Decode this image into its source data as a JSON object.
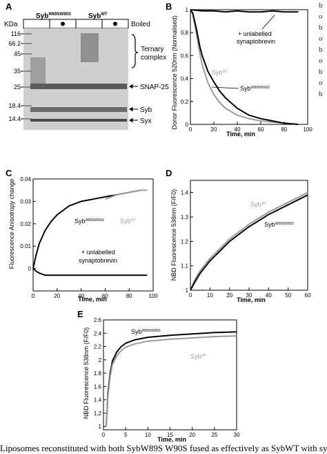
{
  "panels": {
    "a": {
      "letter": "A",
      "kda_label": "KDa",
      "boiled_label": "Boiled",
      "lane_group_mut": "Syb",
      "lane_group_mut_sup": "W89SW90S",
      "lane_group_wt": "Syb",
      "lane_group_wt_sup": "WT",
      "markers": [
        "116",
        "66.2",
        "45",
        "35",
        "25",
        "18.4",
        "14.4"
      ],
      "band_labels": {
        "ternary_line1": "Ternary",
        "ternary_line2": "complex",
        "snap25": "SNAP-25",
        "syb": "Syb",
        "syx": "Syx"
      }
    },
    "b": {
      "letter": "B",
      "ylabel": "Donor Fluorescence 520nm (Normalised)",
      "xlabel": "Time, min",
      "annotation_line1": "+ unlabelled",
      "annotation_line2": "synaptobrevin",
      "label_wt": "Syb",
      "label_wt_sup": "WT",
      "label_mut": "Syb",
      "label_mut_sup": "W89SW90S"
    },
    "c": {
      "letter": "C",
      "ylabel": "Fluorescence Anisotropy change",
      "xlabel": "Time, min",
      "annotation_line1": "+ unlabelled",
      "annotation_line2": "synaptobrevin",
      "label_mut": "Syb",
      "label_mut_sup": "W89SW90S",
      "label_wt": "Syb",
      "label_wt_sup": "WT"
    },
    "d": {
      "letter": "D",
      "ylabel": "NBD Fluorescence 538nm (F/F0)",
      "xlabel": "Time, min",
      "label_wt": "Syb",
      "label_wt_sup": "WT",
      "label_mut": "Syb",
      "label_mut_sup": "W89SW90S"
    },
    "e": {
      "letter": "E",
      "ylabel": "NBD Fluorescence 538nm (F/F0)",
      "xlabel": "Time, min",
      "label_mut": "Syb",
      "label_mut_sup": "W89SW90S",
      "label_wt": "Syb",
      "label_wt_sup": "WT"
    }
  },
  "chart_data": [
    {
      "panel": "B",
      "type": "line",
      "xlabel": "Time, min",
      "ylabel": "Donor Fluorescence 520nm (Normalised)",
      "xlim": [
        0,
        100
      ],
      "ylim": [
        0,
        1
      ],
      "xticks": [
        0,
        20,
        40,
        60,
        80,
        100
      ],
      "yticks": [
        0,
        0.2,
        0.4,
        0.6,
        0.8,
        1
      ],
      "series": [
        {
          "name": "SybWT",
          "color": "#9a9a9a",
          "x": [
            0,
            2,
            5,
            8,
            10,
            15,
            20,
            25,
            30,
            40,
            50,
            60,
            70,
            80,
            92
          ],
          "y": [
            1.0,
            0.96,
            0.8,
            0.62,
            0.52,
            0.36,
            0.26,
            0.19,
            0.14,
            0.08,
            0.05,
            0.03,
            0.02,
            0.01,
            0.0
          ]
        },
        {
          "name": "SybW89SW90S",
          "color": "#000000",
          "x": [
            0,
            2,
            5,
            8,
            10,
            15,
            20,
            25,
            30,
            40,
            50,
            60,
            70,
            80,
            92
          ],
          "y": [
            1.0,
            0.97,
            0.84,
            0.68,
            0.6,
            0.46,
            0.37,
            0.29,
            0.23,
            0.14,
            0.08,
            0.05,
            0.03,
            0.01,
            0.0
          ]
        },
        {
          "name": "+ unlabelled synaptobrevin",
          "color": "#000000",
          "x": [
            0,
            10,
            20,
            30,
            40,
            50,
            60,
            70,
            80,
            92
          ],
          "y": [
            1.0,
            0.99,
            0.99,
            0.98,
            0.99,
            0.98,
            0.98,
            0.99,
            0.98,
            0.98
          ]
        }
      ]
    },
    {
      "panel": "C",
      "type": "line",
      "xlabel": "Time, min",
      "ylabel": "Fluorescence Anisotropy change",
      "xlim": [
        0,
        100
      ],
      "ylim": [
        -0.01,
        0.04
      ],
      "xticks": [
        0,
        20,
        40,
        60,
        80,
        100
      ],
      "yticks": [
        0,
        0.01,
        0.02,
        0.03,
        0.04
      ],
      "series": [
        {
          "name": "SybW89SW90S",
          "color": "#000000",
          "x": [
            0,
            2,
            5,
            10,
            15,
            20,
            30,
            40,
            50,
            60,
            70,
            80,
            90
          ],
          "y": [
            0.0,
            0.005,
            0.011,
            0.017,
            0.021,
            0.024,
            0.028,
            0.03,
            0.031,
            0.032,
            0.033,
            0.034,
            0.035
          ]
        },
        {
          "name": "SybWT",
          "color": "#9a9a9a",
          "x": [
            60,
            70,
            80,
            90,
            95
          ],
          "y": [
            0.031,
            0.033,
            0.034,
            0.035,
            0.035
          ]
        },
        {
          "name": "+ unlabelled synaptobrevin",
          "color": "#000000",
          "x": [
            0,
            2,
            5,
            10,
            20,
            30,
            40,
            50,
            60,
            70,
            80,
            90,
            95
          ],
          "y": [
            0.0,
            -0.001,
            -0.002,
            -0.003,
            -0.003,
            -0.003,
            -0.003,
            -0.003,
            -0.003,
            -0.003,
            -0.003,
            -0.003,
            -0.003
          ]
        }
      ]
    },
    {
      "panel": "D",
      "type": "line",
      "xlabel": "Time, min",
      "ylabel": "NBD Fluorescence 538nm (F/F0)",
      "xlim": [
        0,
        60
      ],
      "ylim": [
        1,
        1.45
      ],
      "xticks": [
        0,
        10,
        20,
        30,
        40,
        50,
        60
      ],
      "yticks": [
        1,
        1.1,
        1.2,
        1.3,
        1.4
      ],
      "series": [
        {
          "name": "SybWT",
          "color": "#9a9a9a",
          "x": [
            0,
            2,
            5,
            10,
            15,
            20,
            25,
            30,
            40,
            50,
            60
          ],
          "y": [
            1.0,
            1.04,
            1.08,
            1.13,
            1.17,
            1.21,
            1.24,
            1.27,
            1.32,
            1.36,
            1.4
          ]
        },
        {
          "name": "SybW89SW90S",
          "color": "#000000",
          "x": [
            0,
            2,
            5,
            10,
            15,
            20,
            25,
            30,
            40,
            50,
            60
          ],
          "y": [
            1.0,
            1.03,
            1.07,
            1.12,
            1.16,
            1.2,
            1.23,
            1.26,
            1.31,
            1.35,
            1.39
          ]
        }
      ]
    },
    {
      "panel": "E",
      "type": "line",
      "xlabel": "Time, min",
      "ylabel": "NBD Fluorescence 538nm (F/F0)",
      "xlim": [
        0,
        30
      ],
      "ylim": [
        0.95,
        2.6
      ],
      "xticks": [
        0,
        5,
        10,
        15,
        20,
        25,
        30
      ],
      "yticks": [
        1,
        1.2,
        1.4,
        1.6,
        1.8,
        2,
        2.2,
        2.4,
        2.6
      ],
      "series": [
        {
          "name": "SybW89SW90S",
          "color": "#000000",
          "x": [
            0.6,
            0.8,
            1,
            1.5,
            2,
            3,
            4,
            5,
            7,
            10,
            15,
            20,
            25,
            30
          ],
          "y": [
            1.0,
            1.2,
            1.5,
            1.8,
            1.98,
            2.12,
            2.2,
            2.25,
            2.3,
            2.34,
            2.37,
            2.39,
            2.41,
            2.42
          ]
        },
        {
          "name": "SybWT",
          "color": "#9a9a9a",
          "x": [
            0.6,
            0.8,
            1,
            1.5,
            2,
            3,
            4,
            5,
            7,
            10,
            15,
            20,
            25,
            30
          ],
          "y": [
            1.0,
            1.18,
            1.45,
            1.75,
            1.93,
            2.06,
            2.14,
            2.19,
            2.24,
            2.28,
            2.31,
            2.33,
            2.35,
            2.36
          ]
        }
      ]
    }
  ],
  "caption": {
    "text": "Liposomes reconstituted with both SybW89S W90S fused as effectively as SybWT with syntax"
  },
  "right_edge_chars": [
    "b",
    "o",
    "b",
    "o",
    "b",
    "o",
    "b",
    "o",
    "b"
  ]
}
